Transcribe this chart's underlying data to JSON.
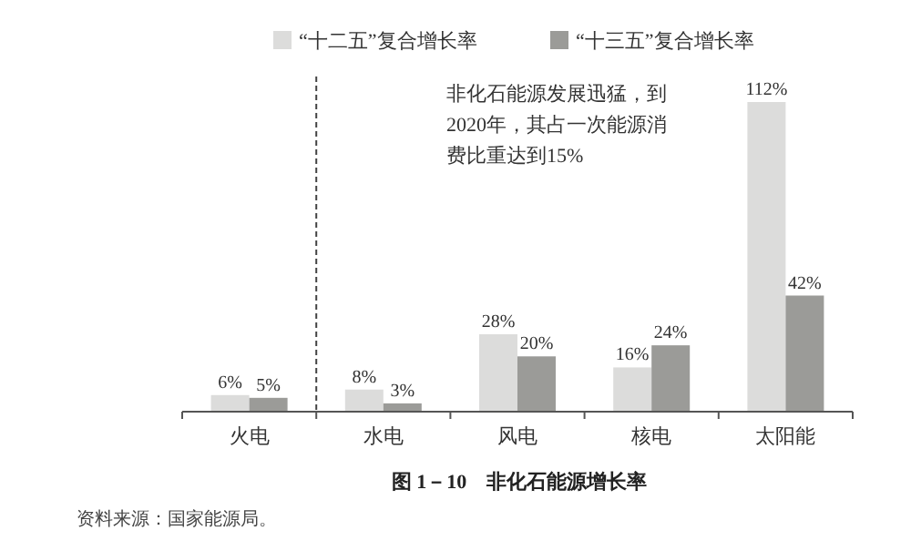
{
  "chart_data": {
    "type": "bar",
    "title": "图 1－10　非化石能源增长率",
    "categories": [
      "火电",
      "水电",
      "风电",
      "核电",
      "太阳能"
    ],
    "series": [
      {
        "name": "“十二五”复合增长率",
        "color": "#dcdcdb",
        "values": [
          6,
          8,
          28,
          16,
          112
        ],
        "value_labels": [
          "6%",
          "8%",
          "28%",
          "16%",
          "112%"
        ]
      },
      {
        "name": "“十三五”复合增长率",
        "color": "#9b9b98",
        "values": [
          5,
          3,
          20,
          24,
          42
        ],
        "value_labels": [
          "5%",
          "3%",
          "20%",
          "24%",
          "42%"
        ]
      }
    ],
    "annotations": [
      "非化石能源发展迅猛，到2020年，其占一次能源消费比重达到15%",
      "资料来源：国家能源局。"
    ],
    "legend": "top"
  }
}
